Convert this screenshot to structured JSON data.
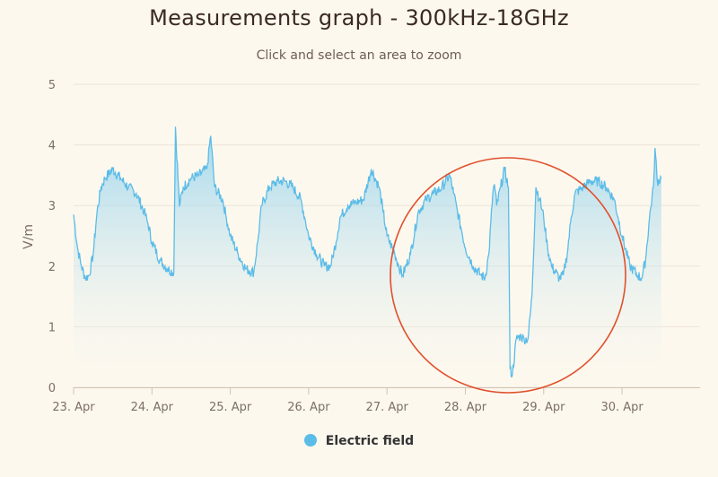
{
  "chart": {
    "title": "Measurements graph - 300kHz-18GHz",
    "subtitle": "Click and select an area to zoom",
    "ylabel": "V/m"
  },
  "legend": {
    "label": "Electric field"
  },
  "colors": {
    "series": "#5bbce8",
    "fill_top": "#8fd1ee",
    "grid": "#ece3d6",
    "annotation": "#e0502c"
  },
  "chart_data": {
    "type": "area",
    "title": "Measurements graph - 300kHz-18GHz",
    "subtitle": "Click and select an area to zoom",
    "ylabel": "V/m",
    "xlabel": "",
    "ylim": [
      0,
      5
    ],
    "xlim": [
      23.0,
      31.0
    ],
    "y_ticks": [
      0,
      1,
      2,
      3,
      4,
      5
    ],
    "x_ticks": [
      {
        "value": 23,
        "label": "23. Apr"
      },
      {
        "value": 24,
        "label": "24. Apr"
      },
      {
        "value": 25,
        "label": "25. Apr"
      },
      {
        "value": 26,
        "label": "26. Apr"
      },
      {
        "value": 27,
        "label": "27. Apr"
      },
      {
        "value": 28,
        "label": "28. Apr"
      },
      {
        "value": 29,
        "label": "29. Apr"
      },
      {
        "value": 30,
        "label": "30. Apr"
      }
    ],
    "grid": true,
    "legend_position": "bottom-center",
    "series": [
      {
        "name": "Electric field",
        "points": [
          [
            23.0,
            2.85
          ],
          [
            23.05,
            2.3
          ],
          [
            23.1,
            2.0
          ],
          [
            23.15,
            1.8
          ],
          [
            23.2,
            1.85
          ],
          [
            23.25,
            2.2
          ],
          [
            23.3,
            2.9
          ],
          [
            23.35,
            3.3
          ],
          [
            23.4,
            3.45
          ],
          [
            23.5,
            3.6
          ],
          [
            23.6,
            3.45
          ],
          [
            23.7,
            3.3
          ],
          [
            23.8,
            3.2
          ],
          [
            23.9,
            2.9
          ],
          [
            23.95,
            2.7
          ],
          [
            24.0,
            2.4
          ],
          [
            24.1,
            2.1
          ],
          [
            24.2,
            1.95
          ],
          [
            24.28,
            1.9
          ],
          [
            24.3,
            4.3
          ],
          [
            24.35,
            3.0
          ],
          [
            24.4,
            3.3
          ],
          [
            24.5,
            3.45
          ],
          [
            24.6,
            3.5
          ],
          [
            24.7,
            3.6
          ],
          [
            24.75,
            4.15
          ],
          [
            24.8,
            3.3
          ],
          [
            24.9,
            3.1
          ],
          [
            24.95,
            2.8
          ],
          [
            25.0,
            2.5
          ],
          [
            25.1,
            2.2
          ],
          [
            25.2,
            1.95
          ],
          [
            25.3,
            1.9
          ],
          [
            25.35,
            2.4
          ],
          [
            25.4,
            3.0
          ],
          [
            25.5,
            3.3
          ],
          [
            25.6,
            3.4
          ],
          [
            25.7,
            3.4
          ],
          [
            25.8,
            3.3
          ],
          [
            25.9,
            3.1
          ],
          [
            25.95,
            2.8
          ],
          [
            26.0,
            2.5
          ],
          [
            26.1,
            2.2
          ],
          [
            26.2,
            2.0
          ],
          [
            26.28,
            2.0
          ],
          [
            26.35,
            2.4
          ],
          [
            26.4,
            2.8
          ],
          [
            26.5,
            3.0
          ],
          [
            26.6,
            3.05
          ],
          [
            26.7,
            3.1
          ],
          [
            26.8,
            3.6
          ],
          [
            26.9,
            3.3
          ],
          [
            26.95,
            2.9
          ],
          [
            27.0,
            2.5
          ],
          [
            27.1,
            2.2
          ],
          [
            27.15,
            2.0
          ],
          [
            27.2,
            1.85
          ],
          [
            27.3,
            2.2
          ],
          [
            27.4,
            2.9
          ],
          [
            27.5,
            3.1
          ],
          [
            27.6,
            3.2
          ],
          [
            27.7,
            3.3
          ],
          [
            27.8,
            3.5
          ],
          [
            27.85,
            3.2
          ],
          [
            27.9,
            2.9
          ],
          [
            27.95,
            2.6
          ],
          [
            28.0,
            2.3
          ],
          [
            28.1,
            2.0
          ],
          [
            28.2,
            1.85
          ],
          [
            28.25,
            1.8
          ],
          [
            28.3,
            2.2
          ],
          [
            28.35,
            3.2
          ],
          [
            28.37,
            3.35
          ],
          [
            28.4,
            3.0
          ],
          [
            28.45,
            3.3
          ],
          [
            28.5,
            3.6
          ],
          [
            28.55,
            3.3
          ],
          [
            28.57,
            0.3
          ],
          [
            28.6,
            0.2
          ],
          [
            28.65,
            0.8
          ],
          [
            28.7,
            0.85
          ],
          [
            28.75,
            0.8
          ],
          [
            28.8,
            0.8
          ],
          [
            28.85,
            1.5
          ],
          [
            28.9,
            3.3
          ],
          [
            28.95,
            3.1
          ],
          [
            29.0,
            2.8
          ],
          [
            29.05,
            2.3
          ],
          [
            29.1,
            2.0
          ],
          [
            29.2,
            1.8
          ],
          [
            29.25,
            1.85
          ],
          [
            29.3,
            2.2
          ],
          [
            29.35,
            2.8
          ],
          [
            29.4,
            3.2
          ],
          [
            29.5,
            3.3
          ],
          [
            29.6,
            3.4
          ],
          [
            29.7,
            3.4
          ],
          [
            29.8,
            3.3
          ],
          [
            29.9,
            3.1
          ],
          [
            29.95,
            2.8
          ],
          [
            30.0,
            2.5
          ],
          [
            30.1,
            2.0
          ],
          [
            30.2,
            1.85
          ],
          [
            30.25,
            1.8
          ],
          [
            30.3,
            2.1
          ],
          [
            30.35,
            2.8
          ],
          [
            30.4,
            3.3
          ],
          [
            30.42,
            3.95
          ],
          [
            30.45,
            3.4
          ],
          [
            30.5,
            3.45
          ]
        ]
      }
    ]
  }
}
